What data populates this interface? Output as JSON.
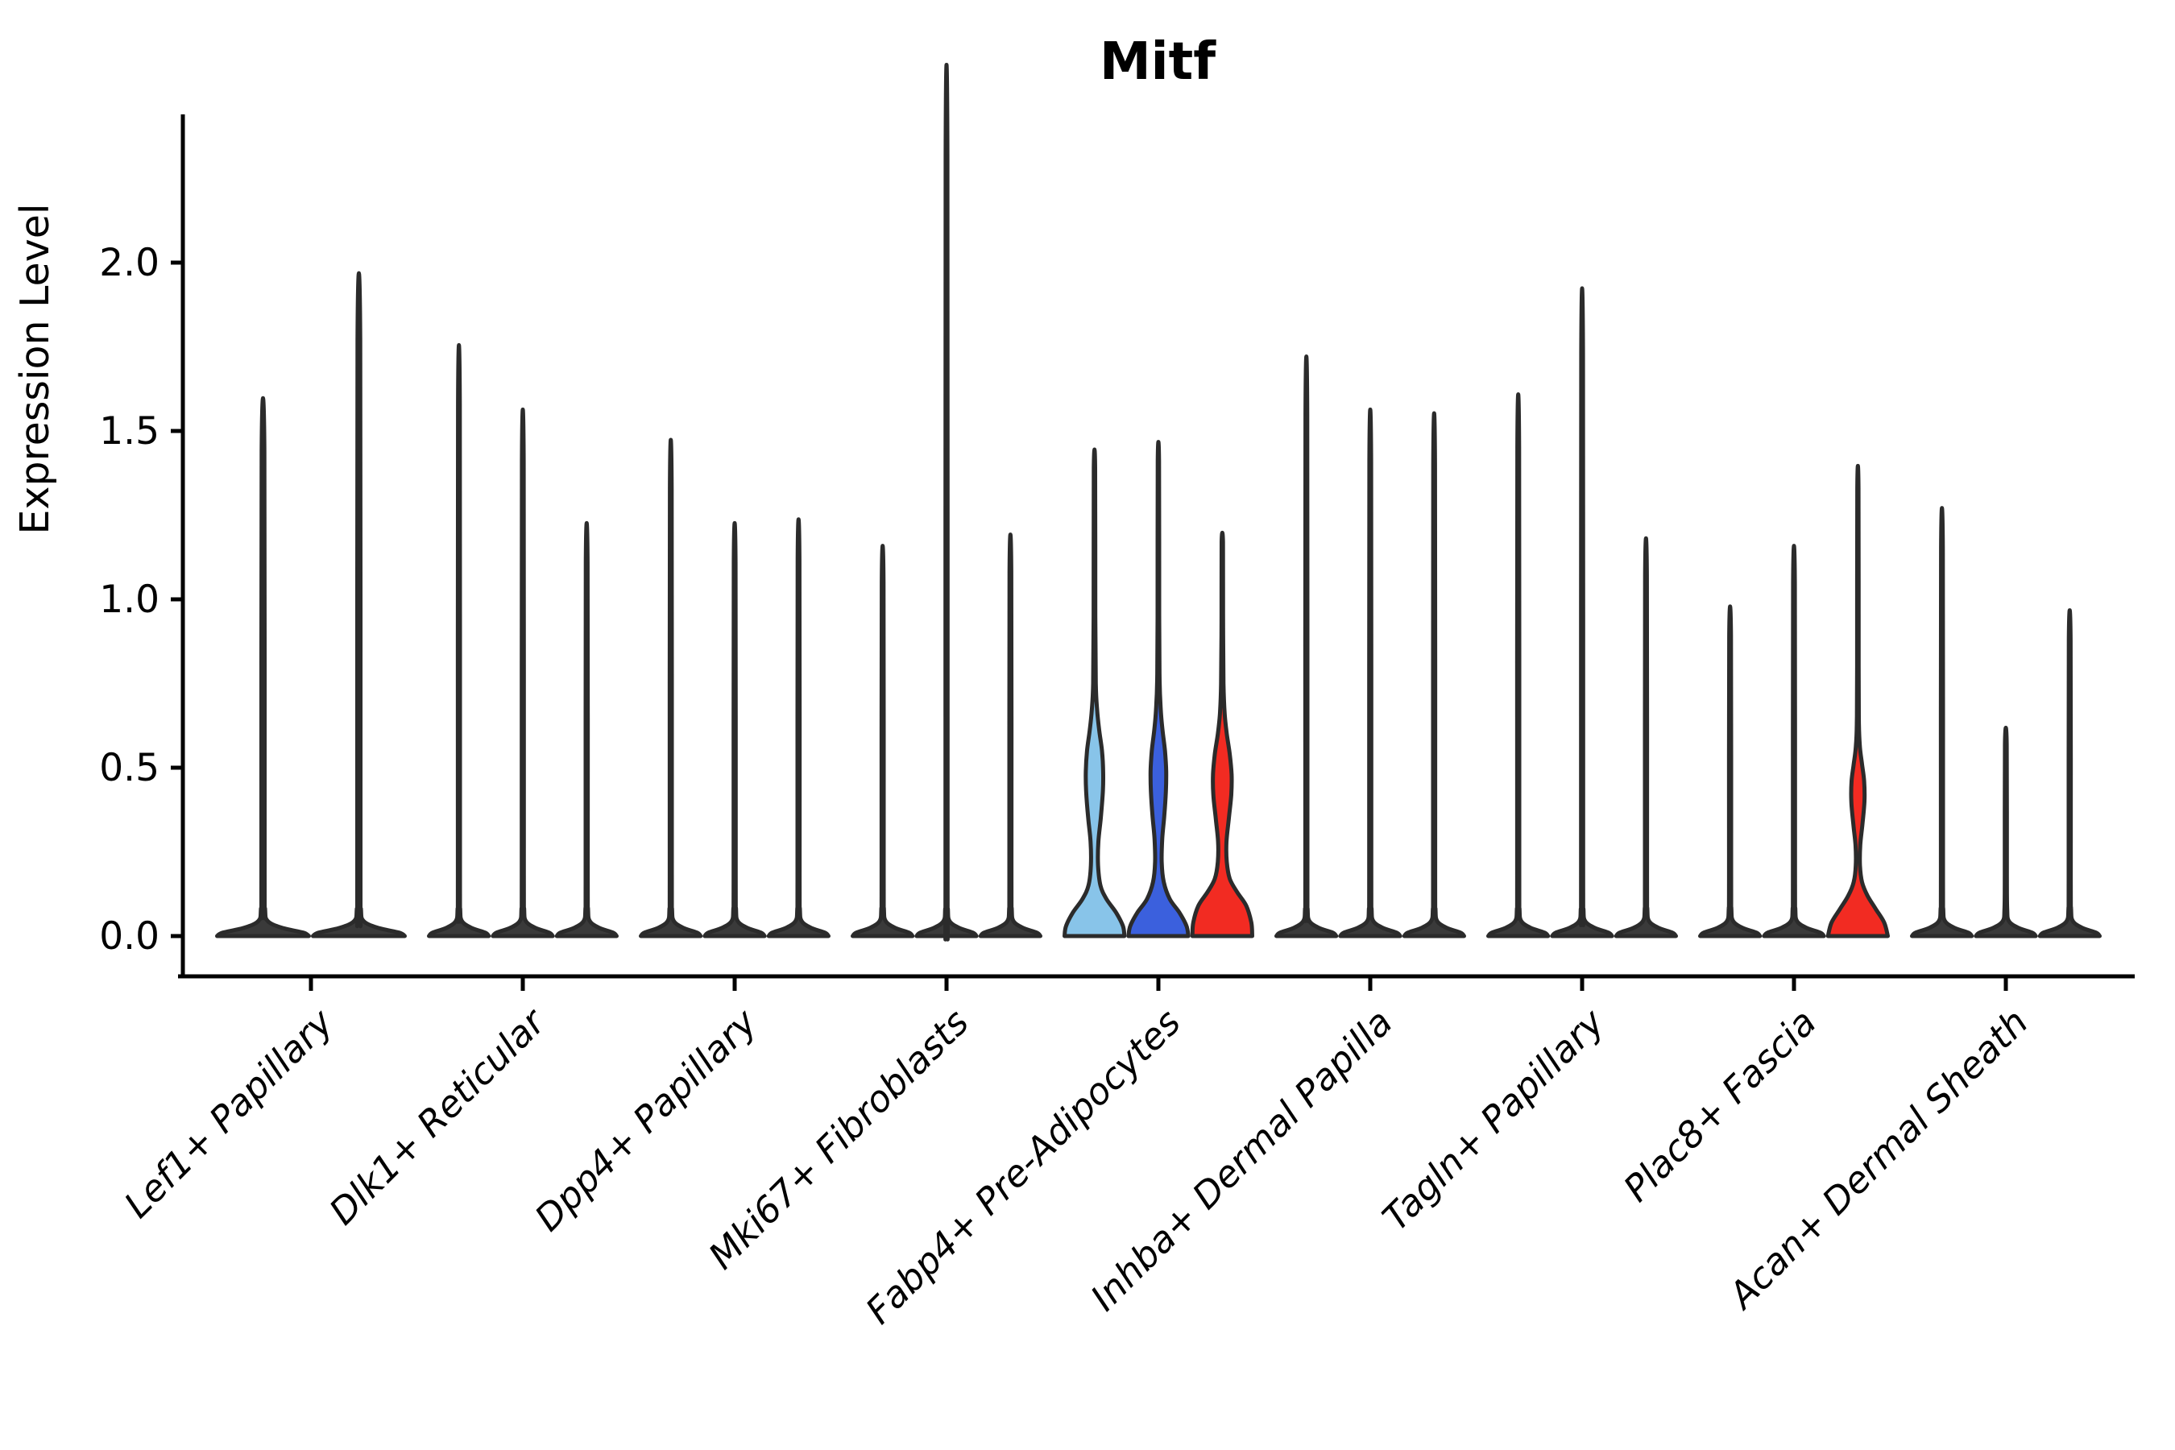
{
  "title": "Mitf",
  "ylabel": "Expression Level",
  "colors": {
    "axis": "#000000",
    "violin_outline": "#2b2b2b",
    "collapsed_violin_fill": "#3a3a3a",
    "palette": {
      "light_blue": "#88C4E9",
      "royal_blue": "#3B60DD",
      "red": "#F22B22"
    }
  },
  "chart_data": {
    "type": "violin",
    "title": "Mitf",
    "xlabel": "",
    "ylabel": "Expression Level",
    "ylim": [
      -0.12,
      2.45
    ],
    "grid": false,
    "legend": false,
    "yticks": [
      {
        "value": 2.0,
        "label": "2.0"
      },
      {
        "value": 1.5,
        "label": "1.5"
      },
      {
        "value": 1.0,
        "label": "1.0"
      },
      {
        "value": 0.5,
        "label": "0.5"
      },
      {
        "value": 0.0,
        "label": "0.0"
      }
    ],
    "categories": [
      "Lef1+ Papillary",
      "Dlk1+ Reticular",
      "Dpp4+ Papillary",
      "Mki67+ Fibroblasts",
      "Fabp4+ Pre-Adipocytes",
      "Inhba+ Dermal Papilla",
      "Tagln+ Papillary",
      "Plac8+ Fascia",
      "Acan+ Dermal Sheath"
    ],
    "groups": [
      {
        "label": "Lef1+ Papillary",
        "violins": [
          {
            "value": 1.44,
            "fill": "#3a3a3a",
            "body": "spike"
          },
          {
            "value": 1.77,
            "fill": "#3a3a3a",
            "body": "spike"
          }
        ]
      },
      {
        "label": "Dlk1+ Reticular",
        "violins": [
          {
            "value": 1.58,
            "fill": "#3a3a3a",
            "body": "spike"
          },
          {
            "value": 1.41,
            "fill": "#3a3a3a",
            "body": "spike"
          },
          {
            "value": 1.11,
            "fill": "#3a3a3a",
            "body": "spike"
          }
        ]
      },
      {
        "label": "Dpp4+ Papillary",
        "violins": [
          {
            "value": 1.33,
            "fill": "#3a3a3a",
            "body": "spike"
          },
          {
            "value": 1.11,
            "fill": "#3a3a3a",
            "body": "spike"
          },
          {
            "value": 1.12,
            "fill": "#3a3a3a",
            "body": "spike"
          }
        ]
      },
      {
        "label": "Mki67+ Fibroblasts",
        "violins": [
          {
            "value": 1.05,
            "fill": "#3a3a3a",
            "body": "spike"
          },
          {
            "value": 2.32,
            "fill": "#3a3a3a",
            "body": "spike"
          },
          {
            "value": 1.08,
            "fill": "#3a3a3a",
            "body": "spike"
          }
        ]
      },
      {
        "label": "Fabp4+ Pre-Adipocytes",
        "violins": [
          {
            "value": 1.39,
            "fill": "#88C4E9",
            "body": "fabp4_lightblue"
          },
          {
            "value": 1.41,
            "fill": "#3B60DD",
            "body": "fabp4_blue"
          },
          {
            "value": 1.17,
            "fill": "#F22B22",
            "body": "fabp4_red"
          }
        ]
      },
      {
        "label": "Inhba+ Dermal Papilla",
        "violins": [
          {
            "value": 1.55,
            "fill": "#3a3a3a",
            "body": "spike"
          },
          {
            "value": 1.41,
            "fill": "#3a3a3a",
            "body": "spike"
          },
          {
            "value": 1.4,
            "fill": "#3a3a3a",
            "body": "spike"
          }
        ]
      },
      {
        "label": "Tagln+ Papillary",
        "violins": [
          {
            "value": 1.45,
            "fill": "#3a3a3a",
            "body": "spike"
          },
          {
            "value": 1.73,
            "fill": "#3a3a3a",
            "body": "spike"
          },
          {
            "value": 1.07,
            "fill": "#3a3a3a",
            "body": "spike"
          }
        ]
      },
      {
        "label": "Plac8+ Fascia",
        "violins": [
          {
            "value": 0.89,
            "fill": "#3a3a3a",
            "body": "spike"
          },
          {
            "value": 1.05,
            "fill": "#3a3a3a",
            "body": "spike"
          },
          {
            "value": 1.33,
            "fill": "#F22B22",
            "body": "plac8_red"
          }
        ]
      },
      {
        "label": "Acan+ Dermal Sheath",
        "violins": [
          {
            "value": 1.15,
            "fill": "#3a3a3a",
            "body": "spike"
          },
          {
            "value": 0.57,
            "fill": "#3a3a3a",
            "body": "spike"
          },
          {
            "value": 0.88,
            "fill": "#3a3a3a",
            "body": "spike"
          }
        ]
      }
    ],
    "violin_profiles": {
      "spike": [
        [
          0,
          1.0
        ],
        [
          0.01,
          0.88
        ],
        [
          0.025,
          0.4
        ],
        [
          0.045,
          0.1
        ],
        [
          0.08,
          0.045
        ],
        [
          0.18,
          0.035
        ],
        [
          1,
          0.03
        ]
      ],
      "fabp4_lightblue": [
        [
          0,
          1.0
        ],
        [
          0.03,
          0.95
        ],
        [
          0.07,
          0.72
        ],
        [
          0.11,
          0.4
        ],
        [
          0.15,
          0.2
        ],
        [
          0.21,
          0.12
        ],
        [
          0.28,
          0.13
        ],
        [
          0.35,
          0.21
        ],
        [
          0.43,
          0.28
        ],
        [
          0.49,
          0.29
        ],
        [
          0.55,
          0.25
        ],
        [
          0.61,
          0.16
        ],
        [
          0.67,
          0.09
        ],
        [
          0.75,
          0.045
        ],
        [
          0.95,
          0.028
        ],
        [
          1,
          0.022
        ]
      ],
      "fabp4_blue": [
        [
          0,
          1.0
        ],
        [
          0.03,
          0.94
        ],
        [
          0.07,
          0.7
        ],
        [
          0.11,
          0.38
        ],
        [
          0.16,
          0.18
        ],
        [
          0.22,
          0.11
        ],
        [
          0.29,
          0.13
        ],
        [
          0.36,
          0.2
        ],
        [
          0.43,
          0.25
        ],
        [
          0.49,
          0.26
        ],
        [
          0.55,
          0.22
        ],
        [
          0.61,
          0.14
        ],
        [
          0.67,
          0.08
        ],
        [
          0.76,
          0.04
        ],
        [
          0.95,
          0.026
        ],
        [
          1,
          0.022
        ]
      ],
      "fabp4_red": [
        [
          0,
          1.0
        ],
        [
          0.04,
          0.97
        ],
        [
          0.09,
          0.8
        ],
        [
          0.13,
          0.5
        ],
        [
          0.17,
          0.25
        ],
        [
          0.22,
          0.15
        ],
        [
          0.28,
          0.14
        ],
        [
          0.35,
          0.22
        ],
        [
          0.42,
          0.3
        ],
        [
          0.48,
          0.31
        ],
        [
          0.54,
          0.25
        ],
        [
          0.6,
          0.15
        ],
        [
          0.66,
          0.08
        ],
        [
          0.75,
          0.04
        ],
        [
          0.95,
          0.026
        ],
        [
          1,
          0.022
        ]
      ],
      "plac8_red": [
        [
          0,
          1.0
        ],
        [
          0.04,
          0.88
        ],
        [
          0.08,
          0.6
        ],
        [
          0.12,
          0.32
        ],
        [
          0.16,
          0.14
        ],
        [
          0.21,
          0.07
        ],
        [
          0.27,
          0.08
        ],
        [
          0.33,
          0.15
        ],
        [
          0.4,
          0.22
        ],
        [
          0.46,
          0.21
        ],
        [
          0.51,
          0.14
        ],
        [
          0.56,
          0.07
        ],
        [
          0.63,
          0.035
        ],
        [
          0.8,
          0.025
        ],
        [
          1,
          0.02
        ]
      ]
    }
  }
}
